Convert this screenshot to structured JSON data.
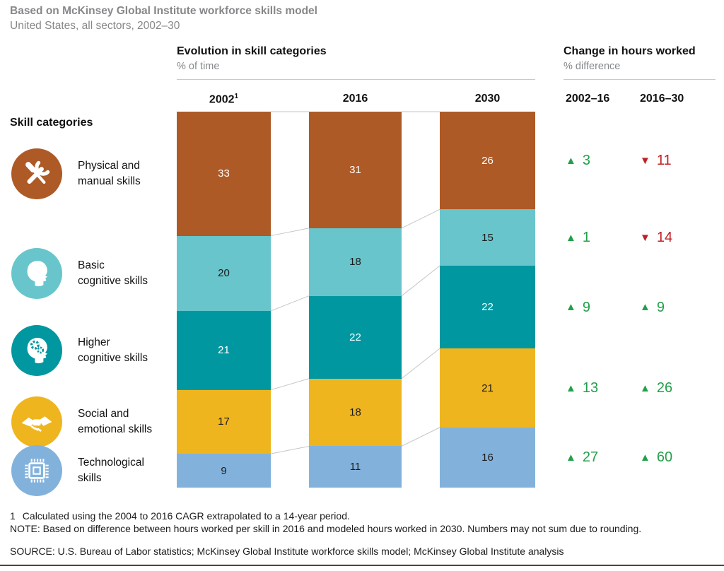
{
  "header": {
    "title": "Based on McKinsey Global Institute workforce skills model",
    "subtitle": "United States, all sectors, 2002–30"
  },
  "left_panel": {
    "heading": "Skill categories"
  },
  "evolution": {
    "title": "Evolution in skill categories",
    "unit": "% of time",
    "year_columns": [
      {
        "label": "2002",
        "sup": "1"
      },
      {
        "label": "2016",
        "sup": ""
      },
      {
        "label": "2030",
        "sup": ""
      }
    ]
  },
  "change": {
    "title": "Change in hours worked",
    "unit": "% difference",
    "columns": [
      "2002–16",
      "2016–30"
    ],
    "up_color": "#21a049",
    "down_color": "#be2026"
  },
  "categories": [
    {
      "line1": "Physical and",
      "line2": "manual skills",
      "icon": "tools-icon",
      "color": "#ad5a27"
    },
    {
      "line1": "Basic",
      "line2": "cognitive skills",
      "icon": "head-icon",
      "color": "#68c5cc"
    },
    {
      "line1": "Higher",
      "line2": "cognitive skills",
      "icon": "head-gears-icon",
      "color": "#0097a0"
    },
    {
      "line1": "Social and",
      "line2": "emotional skills",
      "icon": "handshake-icon",
      "color": "#efb51f"
    },
    {
      "line1": "Technological",
      "line2": "skills",
      "icon": "chip-icon",
      "color": "#82b2dc"
    }
  ],
  "chart_data": {
    "type": "bar",
    "stacked": true,
    "title": "Evolution in skill categories",
    "unit": "% of time",
    "categories": [
      "2002",
      "2016",
      "2030"
    ],
    "ylim": [
      0,
      100
    ],
    "series": [
      {
        "name": "Physical and manual skills",
        "values": [
          33,
          31,
          26
        ],
        "color": "#ad5a27",
        "label_color": "#ffffff"
      },
      {
        "name": "Basic cognitive skills",
        "values": [
          20,
          18,
          15
        ],
        "color": "#68c5cc",
        "label_color": "#1b1b1b"
      },
      {
        "name": "Higher cognitive skills",
        "values": [
          21,
          22,
          22
        ],
        "color": "#0097a0",
        "label_color": "#ffffff"
      },
      {
        "name": "Social and emotional skills",
        "values": [
          17,
          18,
          21
        ],
        "color": "#efb51f",
        "label_color": "#1b1b1b"
      },
      {
        "name": "Technological skills",
        "values": [
          9,
          11,
          16
        ],
        "color": "#82b2dc",
        "label_color": "#1b1b1b"
      }
    ],
    "changes": [
      {
        "c2002_16": {
          "dir": "up",
          "value": 3
        },
        "c2016_30": {
          "dir": "down",
          "value": 11
        }
      },
      {
        "c2002_16": {
          "dir": "up",
          "value": 1
        },
        "c2016_30": {
          "dir": "down",
          "value": 14
        }
      },
      {
        "c2002_16": {
          "dir": "up",
          "value": 9
        },
        "c2016_30": {
          "dir": "up",
          "value": 9
        }
      },
      {
        "c2002_16": {
          "dir": "up",
          "value": 13
        },
        "c2016_30": {
          "dir": "up",
          "value": 26
        }
      },
      {
        "c2002_16": {
          "dir": "up",
          "value": 27
        },
        "c2016_30": {
          "dir": "up",
          "value": 60
        }
      }
    ]
  },
  "footnotes": {
    "fn1_marker": "1",
    "fn1_text": "Calculated using the 2004 to 2016 CAGR extrapolated to a 14-year period.",
    "note": "NOTE: Based on difference between hours worked per skill in 2016 and modeled hours worked in 2030. Numbers may not sum due to rounding.",
    "source": "SOURCE:  U.S. Bureau of Labor statistics; McKinsey Global Institute workforce skills model; McKinsey Global Institute analysis"
  }
}
